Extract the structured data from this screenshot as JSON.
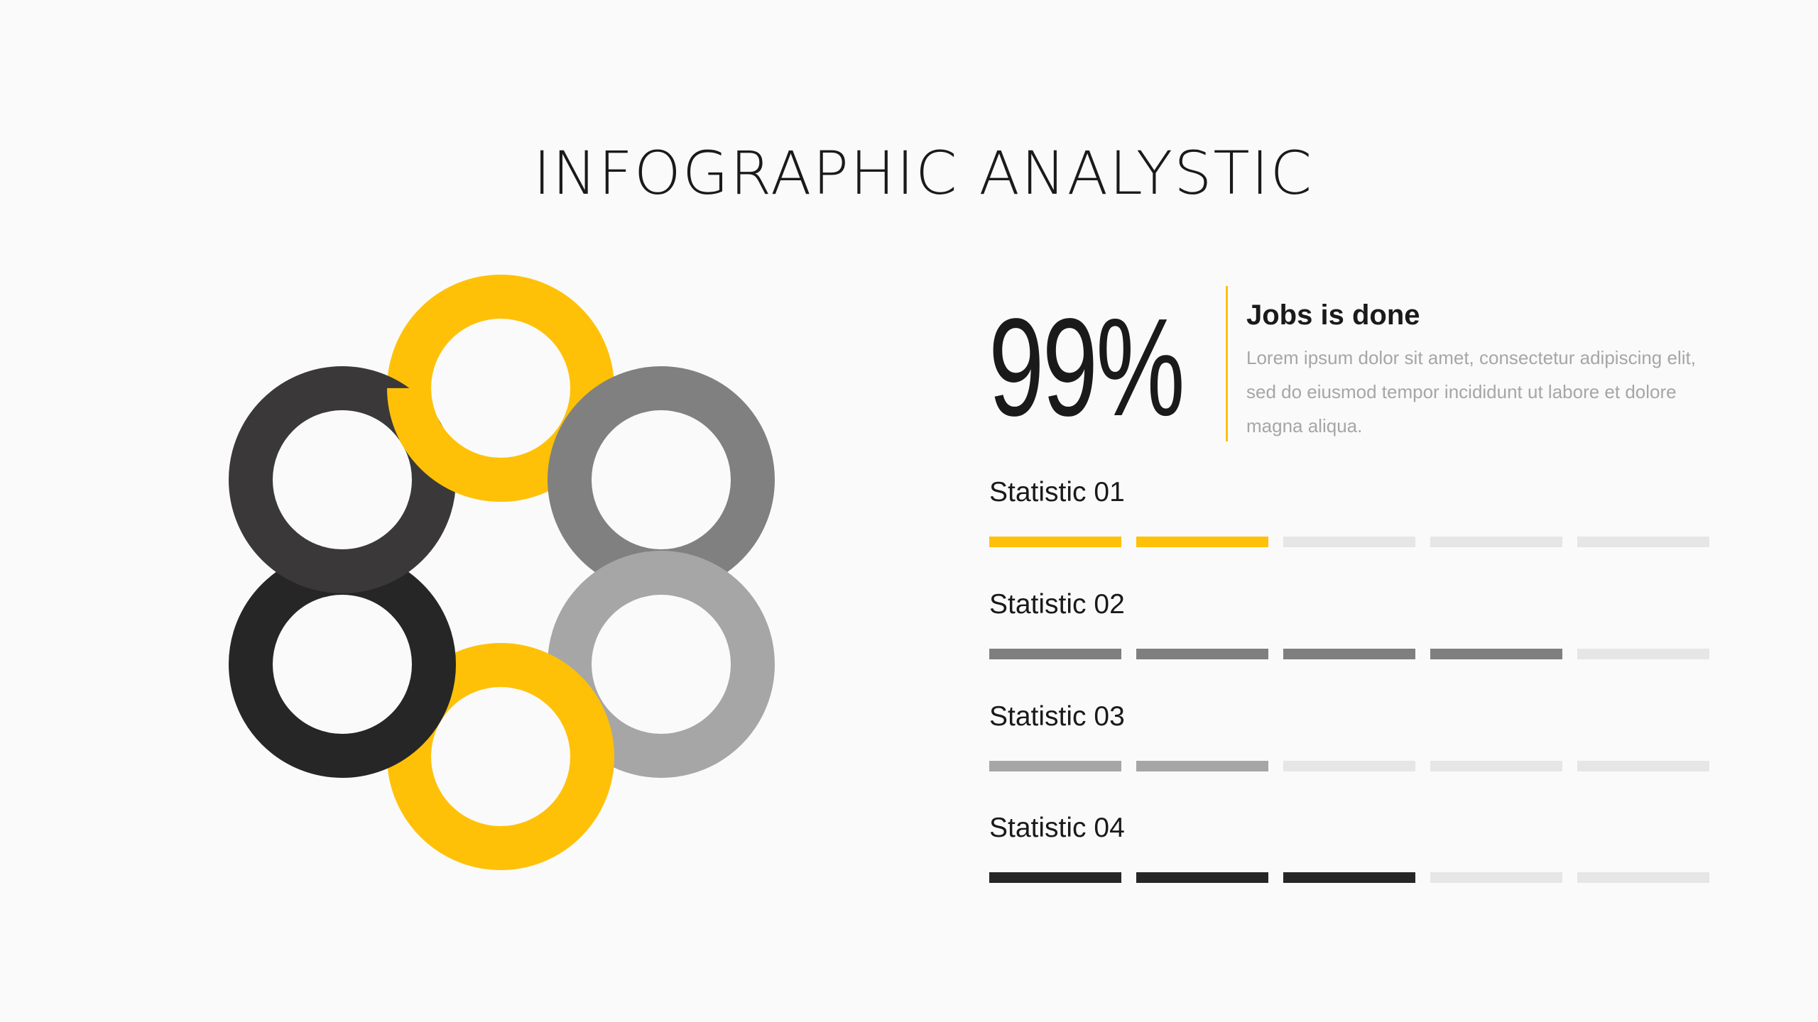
{
  "title": "INFOGRAPHIC ANALYSTIC",
  "colors": {
    "background": "#fafafa",
    "yellow": "#ffc107",
    "gray": "#808080",
    "light_gray": "#a6a6a6",
    "dark": "#262626",
    "charcoal": "#3a3839",
    "empty_bar": "#e6e6e6"
  },
  "rings": [
    {
      "position": "top",
      "color": "#ffc107"
    },
    {
      "position": "top-right",
      "color": "#808080"
    },
    {
      "position": "bottom-right",
      "color": "#a6a6a6"
    },
    {
      "position": "bottom",
      "color": "#ffc107"
    },
    {
      "position": "bottom-left",
      "color": "#262626"
    },
    {
      "position": "top-left",
      "color": "#3a3839"
    }
  ],
  "highlight": {
    "value": "99%",
    "heading": "Jobs is done",
    "description": "Lorem ipsum dolor sit amet, consectetur adipiscing elit, sed do eiusmod tempor incididunt ut labore et dolore magna aliqua."
  },
  "statistics": [
    {
      "label": "Statistic 01",
      "filled": 2,
      "total": 5,
      "color": "#ffc107"
    },
    {
      "label": "Statistic 02",
      "filled": 4,
      "total": 5,
      "color": "#7f7f7f"
    },
    {
      "label": "Statistic 03",
      "filled": 2,
      "total": 5,
      "color": "#a6a6a6"
    },
    {
      "label": "Statistic 04",
      "filled": 3,
      "total": 5,
      "color": "#262626"
    }
  ]
}
